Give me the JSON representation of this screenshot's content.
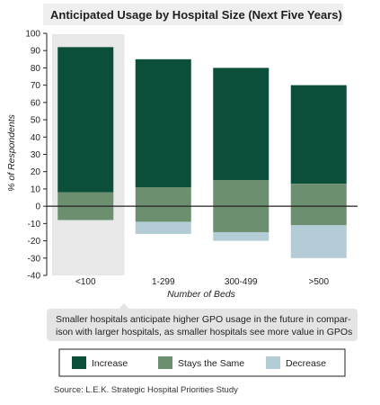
{
  "chart_data": {
    "type": "bar",
    "stacked": true,
    "title": "Anticipated Usage by Hospital Size (Next Five Years)",
    "xlabel": "Number of Beds",
    "ylabel": "% of Respondents",
    "ylim": [
      -40,
      100
    ],
    "yticks": [
      100,
      90,
      80,
      70,
      60,
      50,
      40,
      30,
      20,
      10,
      0,
      -10,
      -20,
      -30,
      -40
    ],
    "ytick_labels": [
      "100",
      "90",
      "80",
      "70",
      "60",
      "50",
      "40",
      "30",
      "20",
      "10",
      "0",
      "-10",
      "-20",
      "-30",
      "-40"
    ],
    "categories": [
      "<100",
      "1-299",
      "300-499",
      ">500"
    ],
    "highlighted_category": "<100",
    "series": [
      {
        "name": "Increase",
        "values": [
          92,
          85,
          80,
          70
        ]
      },
      {
        "name": "Stays the Same",
        "values": [
          8,
          11,
          15,
          13
        ]
      },
      {
        "name": "Decrease",
        "values": [
          0,
          -7,
          -5,
          -19
        ]
      }
    ],
    "stays_same_below_zero": [
      -8,
      -9,
      -15,
      -11
    ],
    "grid": false,
    "legend_position": "bottom"
  },
  "callout": {
    "line1": "Smaller hospitals anticipate higher GPO usage in the future in compar-",
    "line2": "ison with larger hospitals, as smaller hospitals see more value in GPOs"
  },
  "source": "Source:  L.E.K. Strategic Hospital Priorities Study",
  "colors": {
    "increase": "#0b4e39",
    "stays_same": "#6b8f6f",
    "decrease": "#b4ccd6",
    "highlight_bg": "#e8e8e8",
    "callout_bg": "#e4e4e4",
    "title_bg": "#efefef"
  }
}
